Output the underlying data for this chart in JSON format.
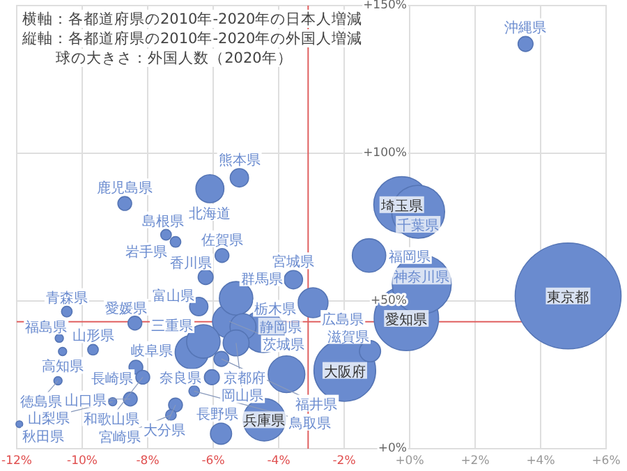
{
  "chart_data": {
    "type": "bubble",
    "title": "横軸：各都道府県の2010年-2020年の日本人増減",
    "subtitle": "縦軸：各都道府県の2010年-2020年の外国人増減",
    "annotations": [
      "球の大きさ：外国人数（2020年）"
    ],
    "color": "#6a8bcf",
    "marker": "circle",
    "grid": true,
    "legend": false,
    "xlim": [
      -12,
      6
    ],
    "ylim": [
      0,
      150
    ],
    "xticks": [
      {
        "value": -12,
        "label": "-12%"
      },
      {
        "value": -10,
        "label": "-10%"
      },
      {
        "value": -8,
        "label": "-8%"
      },
      {
        "value": -6,
        "label": "-6%"
      },
      {
        "value": -4,
        "label": "-4%"
      },
      {
        "value": -2,
        "label": "-2%"
      },
      {
        "value": 0,
        "label": "+0%"
      },
      {
        "value": 2,
        "label": "+2%"
      },
      {
        "value": 4,
        "label": "+4%"
      },
      {
        "value": 6,
        "label": "+6%"
      }
    ],
    "yticks": [
      {
        "value": 0,
        "label": "+0%"
      },
      {
        "value": 50,
        "label": "+50%"
      },
      {
        "value": 100,
        "label": "+100%"
      },
      {
        "value": 150,
        "label": "+150%"
      }
    ],
    "ref_lines": [
      {
        "axis": "x",
        "value": -3.1,
        "label": null,
        "color": "#e06060"
      },
      {
        "axis": "y",
        "value": 43,
        "label": null,
        "color": "#e06060"
      }
    ],
    "series": [
      {
        "name": "東京都",
        "x": [
          4.84
        ],
        "values": [
          51.7
        ],
        "sizes": [
          1
        ]
      },
      {
        "name": "愛知県",
        "x": [
          -0.1
        ],
        "values": [
          44.1
        ],
        "sizes": [
          0.37
        ]
      },
      {
        "name": "大阪府",
        "x": [
          -1.98
        ],
        "values": [
          26.5
        ],
        "sizes": [
          0.34
        ]
      },
      {
        "name": "神奈川県",
        "x": [
          0.37
        ],
        "values": [
          55.6
        ],
        "sizes": [
          0.31
        ]
      },
      {
        "name": "埼玉県",
        "x": [
          -0.24
        ],
        "values": [
          82.6
        ],
        "sizes": [
          0.28
        ]
      },
      {
        "name": "千葉県",
        "x": [
          0.26
        ],
        "values": [
          80.2
        ],
        "sizes": [
          0.25
        ]
      },
      {
        "name": "兵庫県",
        "x": [
          -4.44
        ],
        "values": [
          9.8
        ],
        "sizes": [
          0.16
        ]
      },
      {
        "name": "静岡県",
        "x": [
          -4.47
        ],
        "values": [
          39.7
        ],
        "sizes": [
          0.16
        ]
      },
      {
        "name": "京都府",
        "x": [
          -3.76
        ],
        "values": [
          25.2
        ],
        "sizes": [
          0.12
        ]
      },
      {
        "name": "福岡県",
        "x": [
          -1.24
        ],
        "values": [
          65.4
        ],
        "sizes": [
          0.1
        ]
      },
      {
        "name": "茨城県",
        "x": [
          -5.51
        ],
        "values": [
          43.1
        ],
        "sizes": [
          0.1
        ]
      },
      {
        "name": "群馬県",
        "x": [
          -5.3
        ],
        "values": [
          50.9
        ],
        "sizes": [
          0.1
        ]
      },
      {
        "name": "岐阜県",
        "x": [
          -6.65
        ],
        "values": [
          32.7
        ],
        "sizes": [
          0.1
        ]
      },
      {
        "name": "三重県",
        "x": [
          -6.3
        ],
        "values": [
          36.3
        ],
        "sizes": [
          0.1
        ]
      },
      {
        "name": "広島県",
        "x": [
          -2.95
        ],
        "values": [
          49.4
        ],
        "sizes": [
          0.08
        ]
      },
      {
        "name": "北海道",
        "x": [
          -6.1
        ],
        "values": [
          88
        ],
        "sizes": [
          0.07
        ]
      },
      {
        "name": "栃木県",
        "x": [
          -5.09
        ],
        "values": [
          41.3
        ],
        "sizes": [
          0.06
        ]
      },
      {
        "name": "岡山県",
        "x": [
          -5.3
        ],
        "values": [
          35.8
        ],
        "sizes": [
          0.06
        ]
      },
      {
        "name": "長野県",
        "x": [
          -5.76
        ],
        "values": [
          5.1
        ],
        "sizes": [
          0.04
        ]
      },
      {
        "name": "滋賀県",
        "x": [
          -1.21
        ],
        "values": [
          33
        ],
        "sizes": [
          0.04
        ]
      },
      {
        "name": "富山県",
        "x": [
          -6.44
        ],
        "values": [
          48.1
        ],
        "sizes": [
          0.03
        ]
      },
      {
        "name": "宮城県",
        "x": [
          -3.55
        ],
        "values": [
          57.2
        ],
        "sizes": [
          0.03
        ]
      },
      {
        "name": "熊本県",
        "x": [
          -5.2
        ],
        "values": [
          91.7
        ],
        "sizes": [
          0.03
        ]
      },
      {
        "name": "香川県",
        "x": [
          -6.23
        ],
        "values": [
          58.1
        ],
        "sizes": [
          0.02
        ]
      },
      {
        "name": "奈良県",
        "x": [
          -6.04
        ],
        "values": [
          24.2
        ],
        "sizes": [
          0.02
        ]
      },
      {
        "name": "福井県",
        "x": [
          -5.75
        ],
        "values": [
          30.4
        ],
        "sizes": [
          0.02
        ]
      },
      {
        "name": "沖縄県",
        "x": [
          3.54
        ],
        "values": [
          137
        ],
        "sizes": [
          0.02
        ]
      },
      {
        "name": "愛媛県",
        "x": [
          -8.39
        ],
        "values": [
          42.5
        ],
        "sizes": [
          0.017
        ]
      },
      {
        "name": "長崎県",
        "x": [
          -8.36
        ],
        "values": [
          27.6
        ],
        "sizes": [
          0.017
        ]
      },
      {
        "name": "和歌山県",
        "x": [
          -8.15
        ],
        "values": [
          24.2
        ],
        "sizes": [
          0.017
        ]
      },
      {
        "name": "山口県",
        "x": [
          -8.53
        ],
        "values": [
          16.8
        ],
        "sizes": [
          0.017
        ]
      },
      {
        "name": "大分県",
        "x": [
          -7.15
        ],
        "values": [
          14.8
        ],
        "sizes": [
          0.017
        ]
      },
      {
        "name": "鹿児島県",
        "x": [
          -8.7
        ],
        "values": [
          83
        ],
        "sizes": [
          0.017
        ]
      },
      {
        "name": "佐賀県",
        "x": [
          -5.73
        ],
        "values": [
          65.4
        ],
        "sizes": [
          0.017
        ]
      },
      {
        "name": "宮崎県",
        "x": [
          -7.29
        ],
        "values": [
          11.4
        ],
        "sizes": [
          0.01
        ]
      },
      {
        "name": "鳥取県",
        "x": [
          -6.58
        ],
        "values": [
          19.5
        ],
        "sizes": [
          0.01
        ]
      },
      {
        "name": "島根県",
        "x": [
          -7.44
        ],
        "values": [
          72.4
        ],
        "sizes": [
          0.01
        ]
      },
      {
        "name": "岩手県",
        "x": [
          -7.15
        ],
        "values": [
          70
        ],
        "sizes": [
          0.01
        ]
      },
      {
        "name": "山形県",
        "x": [
          -9.67
        ],
        "values": [
          33.5
        ],
        "sizes": [
          0.01
        ]
      },
      {
        "name": "青森県",
        "x": [
          -10.47
        ],
        "values": [
          46.4
        ],
        "sizes": [
          0.01
        ]
      },
      {
        "name": "福島県",
        "x": [
          -10.7
        ],
        "values": [
          37.4
        ],
        "sizes": [
          0.006
        ]
      },
      {
        "name": "高知県",
        "x": [
          -10.6
        ],
        "values": [
          32.9
        ],
        "sizes": [
          0.006
        ]
      },
      {
        "name": "徳島県",
        "x": [
          -10.74
        ],
        "values": [
          23
        ],
        "sizes": [
          0.006
        ]
      },
      {
        "name": "山梨県",
        "x": [
          -9.07
        ],
        "values": [
          15.9
        ],
        "sizes": [
          0.006
        ]
      },
      {
        "name": "秋田県",
        "x": [
          -11.92
        ],
        "values": [
          8.3
        ],
        "sizes": [
          0.004
        ]
      }
    ]
  }
}
